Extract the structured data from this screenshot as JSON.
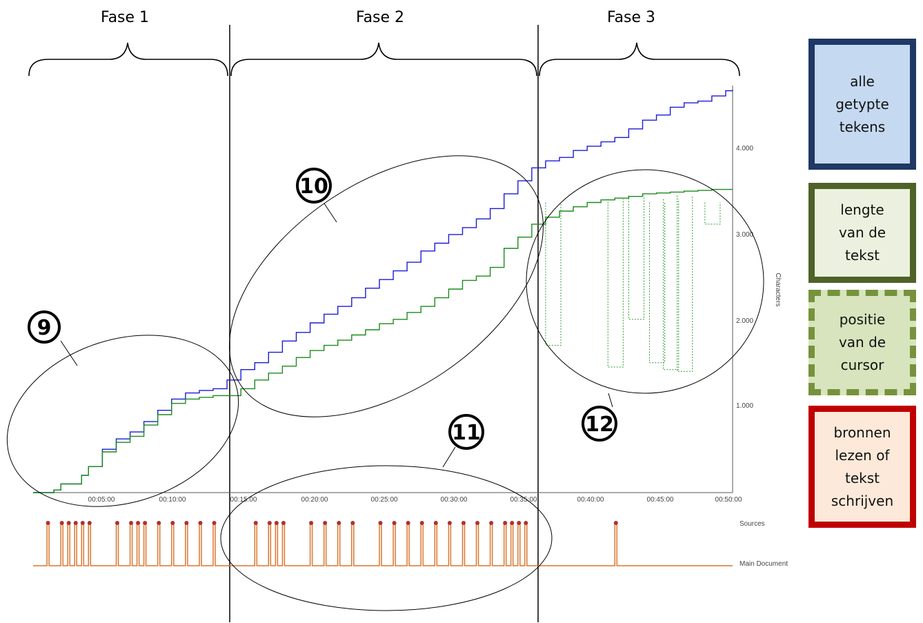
{
  "phases": [
    "Fase 1",
    "Fase 2",
    "Fase 3"
  ],
  "annotations": [
    "9",
    "10",
    "11",
    "12"
  ],
  "legend": [
    {
      "label": "alle\ngetypte\ntekens",
      "fill": "#c5d9f1",
      "border": "#1f3864"
    },
    {
      "label": "lengte\nvan de\ntekst",
      "fill": "#ebf1de",
      "border": "#4f6228"
    },
    {
      "label": "positie\nvan de\ncursor",
      "fill": "#d7e4bd",
      "border": "#76923c"
    },
    {
      "label": "bronnen\nlezen of\ntekst\nschrijven",
      "fill": "#fde9d9",
      "border": "#c00000"
    }
  ],
  "colors": {
    "typed": "#1a1ad6",
    "length": "#1a8a1a",
    "cursor": "#2a9a2a",
    "sources": "#d9772f",
    "sources_marker": "#b03030",
    "axis": "#444444"
  },
  "chart_data": [
    {
      "type": "line",
      "xlabel": "",
      "ylabel": "Characters",
      "x_ticks": [
        "00:05:00",
        "00:10:00",
        "00:15:00",
        "00:20:00",
        "00:25:00",
        "00:30:00",
        "00:35:00",
        "00:40:00",
        "00:45:00",
        "00:50:00"
      ],
      "y_ticks": [
        "1.000",
        "2.000",
        "3.000",
        "4.000"
      ],
      "xlim_minutes": [
        0,
        50.5
      ],
      "ylim": [
        0,
        4700
      ],
      "series": [
        {
          "name": "alle getypte tekens",
          "x_minutes": [
            0,
            1.5,
            2,
            3.5,
            4,
            5,
            6,
            7,
            8,
            9,
            10,
            11,
            12,
            13,
            14,
            15,
            16,
            17,
            18,
            19,
            20,
            21,
            22,
            23,
            24,
            25,
            26,
            27,
            28,
            29,
            30,
            31,
            32,
            33,
            34,
            35,
            36,
            37,
            38,
            39,
            40,
            41,
            42,
            43,
            44,
            45,
            46,
            47,
            48,
            49,
            50,
            50.5
          ],
          "values": [
            0,
            30,
            100,
            200,
            300,
            500,
            620,
            700,
            820,
            950,
            1080,
            1150,
            1180,
            1200,
            1300,
            1420,
            1500,
            1620,
            1750,
            1850,
            1960,
            2060,
            2150,
            2250,
            2360,
            2460,
            2560,
            2660,
            2790,
            2880,
            2980,
            3060,
            3160,
            3280,
            3450,
            3600,
            3750,
            3830,
            3870,
            3950,
            4000,
            4050,
            4100,
            4200,
            4300,
            4360,
            4450,
            4500,
            4520,
            4580,
            4640,
            4650
          ]
        },
        {
          "name": "lengte van de tekst",
          "x_minutes": [
            0,
            1.5,
            2,
            3.5,
            4,
            5,
            6,
            7,
            8,
            9,
            10,
            11,
            12,
            13,
            14,
            15,
            16,
            17,
            18,
            19,
            20,
            21,
            22,
            23,
            24,
            25,
            26,
            27,
            28,
            29,
            30,
            31,
            32,
            33,
            34,
            35,
            36,
            37,
            38,
            39,
            40,
            41,
            42,
            43,
            44,
            45,
            46,
            47,
            48,
            49,
            50,
            50.5
          ],
          "values": [
            0,
            30,
            100,
            200,
            300,
            470,
            580,
            650,
            780,
            900,
            1030,
            1080,
            1100,
            1120,
            1120,
            1200,
            1300,
            1380,
            1460,
            1560,
            1640,
            1700,
            1760,
            1820,
            1880,
            1950,
            2000,
            2080,
            2150,
            2250,
            2350,
            2450,
            2500,
            2600,
            2820,
            2950,
            3100,
            3180,
            3250,
            3300,
            3350,
            3380,
            3400,
            3420,
            3450,
            3460,
            3470,
            3480,
            3490,
            3500,
            3500,
            3500
          ]
        }
      ]
    },
    {
      "type": "line",
      "categories": [
        "Sources",
        "Main Document"
      ]
    }
  ]
}
